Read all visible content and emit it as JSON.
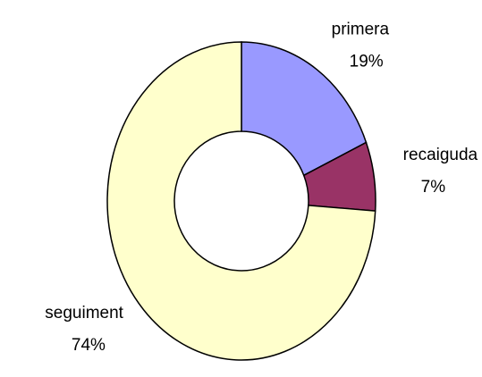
{
  "chart_data": {
    "type": "donut",
    "categories": [
      "primera",
      "recaiguda",
      "seguiment"
    ],
    "values": [
      19,
      7,
      74
    ],
    "value_labels": [
      "19%",
      "7%",
      "74%"
    ],
    "colors": [
      "#9999ff",
      "#993366",
      "#ffffcc"
    ]
  }
}
